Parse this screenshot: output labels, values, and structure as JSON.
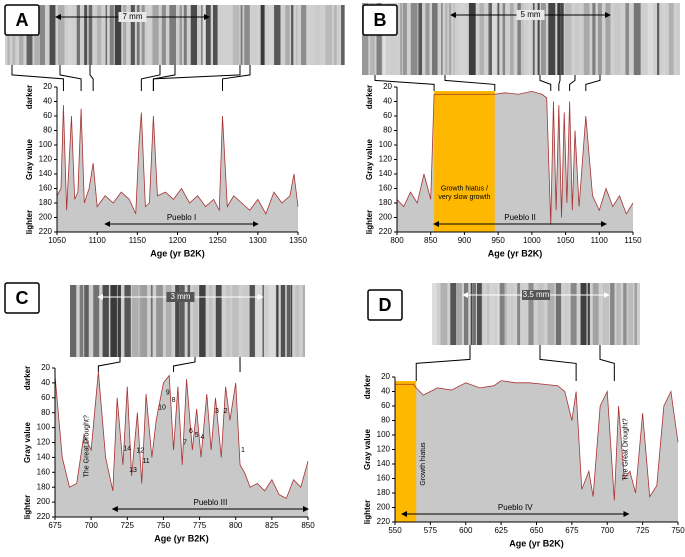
{
  "chart_data": [
    {
      "type": "area",
      "panel": "A",
      "scale_label": "7 mm",
      "x_label": "Age (yr B2K)",
      "y_label": "Gray value",
      "y_top_label": "darker",
      "y_bottom_label": "lighter",
      "y_inverted": true,
      "color": "#a83232",
      "fill": "#c8c8c8",
      "x": [
        1050,
        1055,
        1058,
        1062,
        1068,
        1072,
        1076,
        1080,
        1084,
        1090,
        1095,
        1100,
        1110,
        1120,
        1130,
        1140,
        1148,
        1152,
        1155,
        1160,
        1165,
        1170,
        1175,
        1185,
        1195,
        1205,
        1215,
        1225,
        1235,
        1245,
        1252,
        1256,
        1262,
        1270,
        1280,
        1290,
        1300,
        1310,
        1320,
        1330,
        1340,
        1345,
        1350
      ],
      "values": [
        170,
        160,
        45,
        190,
        60,
        175,
        165,
        50,
        180,
        160,
        125,
        185,
        170,
        180,
        165,
        175,
        195,
        100,
        55,
        185,
        180,
        60,
        170,
        165,
        175,
        160,
        180,
        170,
        185,
        175,
        190,
        60,
        185,
        170,
        180,
        190,
        175,
        195,
        165,
        180,
        170,
        140,
        185
      ],
      "xlim": [
        1050,
        1350
      ],
      "ylim": [
        20,
        220
      ],
      "xticks": [
        1050,
        1100,
        1150,
        1200,
        1250,
        1300,
        1350
      ],
      "yticks": [
        20,
        40,
        60,
        80,
        100,
        120,
        140,
        160,
        180,
        200,
        220
      ],
      "period": {
        "label": "Pueblo I",
        "start": 1110,
        "end": 1300
      },
      "annotations": []
    },
    {
      "type": "area",
      "panel": "B",
      "scale_label": "5 mm",
      "x_label": "Age (yr B2K)",
      "y_label": "Gray value",
      "y_top_label": "darker",
      "y_bottom_label": "lighter",
      "y_inverted": true,
      "color": "#a83232",
      "fill": "#c8c8c8",
      "x": [
        800,
        810,
        820,
        830,
        840,
        850,
        855,
        860,
        900,
        945,
        960,
        980,
        1000,
        1015,
        1022,
        1028,
        1032,
        1036,
        1040,
        1044,
        1048,
        1052,
        1056,
        1060,
        1064,
        1070,
        1080,
        1090,
        1100,
        1110,
        1120,
        1130,
        1140,
        1150
      ],
      "values": [
        175,
        185,
        165,
        180,
        140,
        175,
        30,
        30,
        30,
        30,
        28,
        30,
        26,
        30,
        35,
        210,
        40,
        190,
        45,
        200,
        55,
        180,
        40,
        190,
        80,
        185,
        60,
        170,
        190,
        160,
        185,
        170,
        195,
        180
      ],
      "xlim": [
        800,
        1150
      ],
      "ylim": [
        20,
        220
      ],
      "xticks": [
        800,
        850,
        900,
        950,
        1000,
        1050,
        1100,
        1150
      ],
      "yticks": [
        20,
        40,
        60,
        80,
        100,
        120,
        140,
        160,
        180,
        200,
        220
      ],
      "hiatus": {
        "start": 855,
        "end": 945,
        "color": "#ffb800"
      },
      "period": {
        "label": "Pueblo II",
        "start": 855,
        "end": 1110
      },
      "annotations": [
        "Growth hiatus /",
        "very slow growth"
      ]
    },
    {
      "type": "area",
      "panel": "C",
      "scale_label": "3 mm",
      "x_label": "Age (yr B2K)",
      "y_label": "Gray value",
      "y_top_label": "darker",
      "y_bottom_label": "lighter",
      "y_inverted": true,
      "color": "#a83232",
      "fill": "#c8c8c8",
      "x": [
        675,
        680,
        685,
        690,
        695,
        700,
        705,
        710,
        715,
        718,
        722,
        725,
        728,
        732,
        735,
        738,
        742,
        745,
        750,
        754,
        757,
        760,
        763,
        766,
        770,
        773,
        776,
        780,
        783,
        786,
        790,
        793,
        796,
        800,
        803,
        806,
        810,
        815,
        820,
        825,
        830,
        835,
        840,
        845,
        850
      ],
      "values": [
        30,
        140,
        180,
        175,
        110,
        130,
        25,
        140,
        185,
        60,
        150,
        45,
        165,
        80,
        175,
        55,
        140,
        90,
        40,
        30,
        130,
        45,
        150,
        35,
        130,
        75,
        140,
        55,
        130,
        60,
        140,
        45,
        90,
        40,
        150,
        160,
        180,
        175,
        185,
        170,
        190,
        195,
        170,
        180,
        145
      ],
      "xlim": [
        675,
        850
      ],
      "ylim": [
        20,
        220
      ],
      "xticks": [
        675,
        700,
        725,
        750,
        775,
        800,
        825,
        850
      ],
      "yticks": [
        20,
        40,
        60,
        80,
        100,
        120,
        140,
        160,
        180,
        200,
        220
      ],
      "period": {
        "label": "Pueblo III",
        "start": 715,
        "end": 850
      },
      "annotations": [
        "The Great Drought?",
        "1",
        "2",
        "3",
        "4",
        "5",
        "6",
        "7",
        "8",
        "9",
        "10",
        "11",
        "12",
        "13",
        "14"
      ]
    },
    {
      "type": "area",
      "panel": "D",
      "scale_label": "3.5 mm",
      "x_label": "Age (yr B2K)",
      "y_label": "Gray value",
      "y_top_label": "darker",
      "y_bottom_label": "lighter",
      "y_inverted": true,
      "color": "#a83232",
      "fill": "#c8c8c8",
      "x": [
        550,
        563,
        565,
        570,
        575,
        580,
        590,
        600,
        610,
        620,
        625,
        635,
        645,
        655,
        665,
        670,
        675,
        678,
        682,
        687,
        690,
        695,
        700,
        705,
        708,
        712,
        716,
        720,
        725,
        730,
        735,
        740,
        745,
        750
      ],
      "values": [
        30,
        30,
        35,
        45,
        40,
        35,
        38,
        28,
        35,
        32,
        25,
        28,
        28,
        30,
        32,
        40,
        80,
        40,
        175,
        150,
        185,
        60,
        40,
        190,
        60,
        160,
        150,
        180,
        70,
        185,
        170,
        60,
        40,
        110
      ],
      "xlim": [
        550,
        750
      ],
      "ylim": [
        20,
        220
      ],
      "xticks": [
        550,
        575,
        600,
        625,
        650,
        675,
        700,
        725,
        750
      ],
      "yticks": [
        20,
        40,
        60,
        80,
        100,
        120,
        140,
        160,
        180,
        200,
        220
      ],
      "hiatus": {
        "start": 550,
        "end": 565,
        "color": "#ffb800"
      },
      "period": {
        "label": "Pueblo IV",
        "start": 555,
        "end": 715
      },
      "annotations": [
        "Growth hiatus",
        "The Great Drought?"
      ]
    }
  ]
}
